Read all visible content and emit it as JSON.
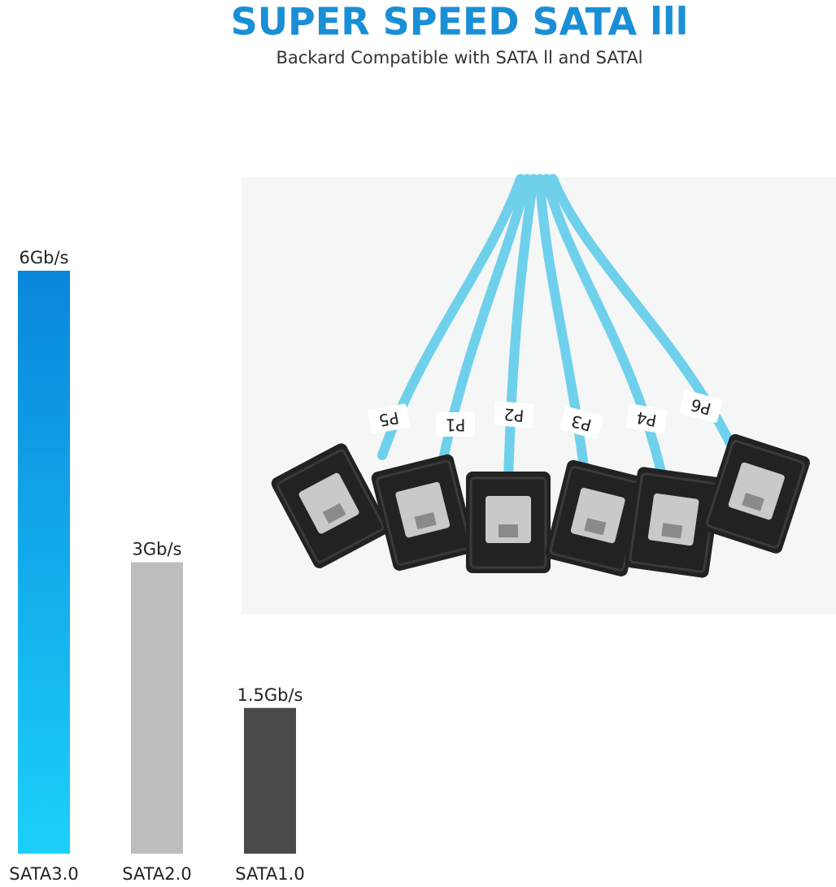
{
  "chart_data": {
    "type": "bar",
    "title": "SUPER SPEED SATA lll",
    "subtitle": "Backard Compatible with SATA ll and SATAl",
    "categories": [
      "SATA3.0",
      "SATA2.0",
      "SATA1.0"
    ],
    "values": [
      6,
      3,
      1.5
    ],
    "value_labels": [
      "6Gb/s",
      "3Gb/s",
      "1.5Gb/s"
    ],
    "colors": [
      "#1aa3ec",
      "#bdbdbd",
      "#4a4a4a"
    ]
  },
  "photo": {
    "labels": [
      "P5",
      "P1",
      "P2",
      "P3",
      "P4",
      "P6"
    ]
  }
}
